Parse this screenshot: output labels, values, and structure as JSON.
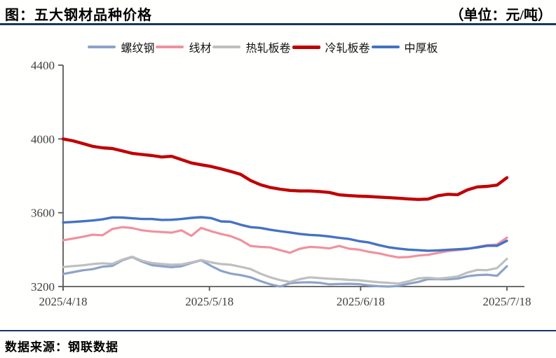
{
  "header": {
    "title": "图：五大钢材品种价格",
    "unit": "（单位：元/吨）"
  },
  "footer": {
    "source": "数据来源：钢联数据"
  },
  "colors": {
    "rule": "#17375e",
    "axis": "#595959",
    "tick_text": "#3f3f3f"
  },
  "chart_data": {
    "type": "line",
    "title": "五大钢材品种价格",
    "unit": "元/吨",
    "grid": false,
    "legend_position": "top",
    "ylim": [
      3200,
      4400
    ],
    "y_ticks": [
      3200,
      3600,
      4000,
      4400
    ],
    "x_ticks": [
      "2025/4/18",
      "2025/5/18",
      "2025/6/18",
      "2025/7/18"
    ],
    "x_tick_days": [
      0,
      30,
      61,
      91
    ],
    "x_total_days": 91,
    "sample_interval_days": 2.02,
    "series": [
      {
        "name": "螺纹钢",
        "color": "#8ca3c9",
        "width": 3.2,
        "values": [
          3268,
          3278,
          3288,
          3294,
          3308,
          3312,
          3342,
          3360,
          3335,
          3316,
          3310,
          3305,
          3310,
          3328,
          3342,
          3312,
          3285,
          3270,
          3262,
          3250,
          3230,
          3212,
          3200,
          3218,
          3222,
          3223,
          3220,
          3212,
          3214,
          3215,
          3213,
          3206,
          3202,
          3200,
          3203,
          3215,
          3225,
          3240,
          3240,
          3239,
          3243,
          3256,
          3262,
          3264,
          3258,
          3310
        ]
      },
      {
        "name": "线材",
        "color": "#f0919f",
        "width": 3.2,
        "values": [
          3451,
          3460,
          3470,
          3481,
          3478,
          3512,
          3522,
          3517,
          3505,
          3499,
          3496,
          3492,
          3505,
          3475,
          3518,
          3500,
          3485,
          3473,
          3452,
          3420,
          3415,
          3412,
          3397,
          3383,
          3405,
          3415,
          3412,
          3407,
          3420,
          3405,
          3400,
          3388,
          3380,
          3368,
          3358,
          3360,
          3368,
          3372,
          3382,
          3392,
          3398,
          3404,
          3415,
          3424,
          3428,
          3465
        ]
      },
      {
        "name": "热轧板卷",
        "color": "#bfbfbf",
        "width": 3.2,
        "values": [
          3306,
          3311,
          3315,
          3322,
          3326,
          3323,
          3346,
          3362,
          3340,
          3328,
          3322,
          3318,
          3320,
          3331,
          3344,
          3331,
          3322,
          3318,
          3307,
          3295,
          3270,
          3250,
          3235,
          3225,
          3240,
          3250,
          3246,
          3242,
          3240,
          3236,
          3234,
          3228,
          3223,
          3220,
          3216,
          3228,
          3244,
          3248,
          3243,
          3248,
          3255,
          3276,
          3290,
          3289,
          3300,
          3350
        ]
      },
      {
        "name": "冷轧板卷",
        "color": "#c00000",
        "width": 4.4,
        "values": [
          4000,
          3990,
          3975,
          3960,
          3952,
          3948,
          3935,
          3922,
          3916,
          3910,
          3902,
          3906,
          3888,
          3870,
          3860,
          3851,
          3838,
          3824,
          3808,
          3775,
          3752,
          3737,
          3728,
          3721,
          3718,
          3718,
          3715,
          3710,
          3697,
          3693,
          3690,
          3688,
          3685,
          3682,
          3679,
          3675,
          3672,
          3674,
          3692,
          3700,
          3698,
          3724,
          3740,
          3743,
          3750,
          3790
        ]
      },
      {
        "name": "中厚板",
        "color": "#4472c4",
        "width": 3.4,
        "values": [
          3547,
          3550,
          3554,
          3558,
          3564,
          3575,
          3574,
          3570,
          3566,
          3566,
          3561,
          3562,
          3566,
          3572,
          3576,
          3571,
          3553,
          3551,
          3535,
          3522,
          3518,
          3508,
          3500,
          3493,
          3485,
          3480,
          3477,
          3471,
          3464,
          3458,
          3446,
          3439,
          3425,
          3413,
          3406,
          3400,
          3397,
          3394,
          3396,
          3399,
          3402,
          3405,
          3412,
          3421,
          3421,
          3448
        ]
      }
    ]
  }
}
